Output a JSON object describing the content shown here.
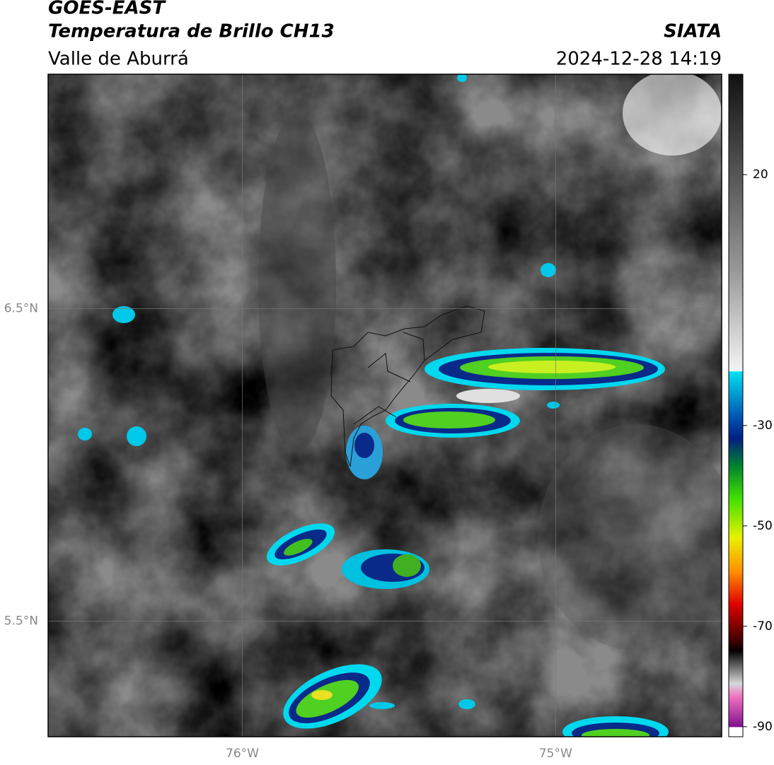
{
  "header": {
    "title": "GOES-EAST",
    "subtitle": "Temperatura de Brillo CH13",
    "region": "Valle de Aburrá",
    "source": "SIATA",
    "timestamp": "2024-12-28 14:19"
  },
  "map": {
    "lonlim": [
      -76.62,
      -74.47
    ],
    "latlim": [
      5.13,
      7.25
    ],
    "lon_ticks": [
      {
        "value": -76,
        "label": "76°W"
      },
      {
        "value": -75,
        "label": "75°W"
      }
    ],
    "lat_ticks": [
      {
        "value": 6.5,
        "label": "6.5°N"
      },
      {
        "value": 5.5,
        "label": "5.5°N"
      }
    ],
    "grid": true
  },
  "colorbar": {
    "lim": [
      -92,
      40
    ],
    "ticks": [
      20,
      -30,
      -50,
      -70,
      -90
    ]
  }
}
